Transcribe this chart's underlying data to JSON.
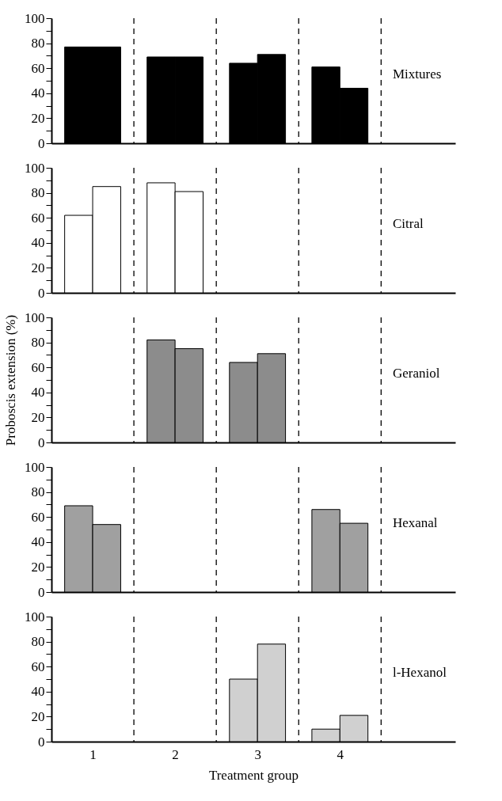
{
  "chart_data": [
    {
      "type": "bar",
      "title": "Mixtures",
      "x": [
        1,
        2,
        3,
        4
      ],
      "xlim": [
        0.5,
        5.4
      ],
      "ylim": [
        0,
        100
      ],
      "yticks": [
        0,
        {
          "value": 10,
          "label": null
        },
        20,
        {
          "value": 30,
          "label": null
        },
        40,
        {
          "value": 50,
          "label": null
        },
        60,
        {
          "value": 70,
          "label": null
        },
        80,
        {
          "value": 90,
          "label": null
        },
        100
      ],
      "tick_labels": "y",
      "grid": false,
      "series": [
        {
          "color": "#000000",
          "values": [
            77,
            69,
            64,
            61
          ]
        },
        {
          "color": "#000000",
          "values": [
            77,
            69,
            71,
            44
          ]
        }
      ],
      "ref_lines": [
        {
          "axis": "x",
          "value": 1.5,
          "color": "#000000",
          "line_style": "dashed"
        },
        {
          "axis": "x",
          "value": 2.5,
          "color": "#000000",
          "line_style": "dashed"
        },
        {
          "axis": "x",
          "value": 3.5,
          "color": "#000000",
          "line_style": "dashed"
        },
        {
          "axis": "x",
          "value": 4.5,
          "color": "#000000",
          "line_style": "dashed"
        }
      ]
    },
    {
      "type": "bar",
      "title": "Citral",
      "x": [
        1,
        2
      ],
      "xlim": [
        0.5,
        5.4
      ],
      "ylim": [
        0,
        100
      ],
      "yticks": [
        0,
        {
          "value": 10,
          "label": null
        },
        20,
        {
          "value": 30,
          "label": null
        },
        40,
        {
          "value": 50,
          "label": null
        },
        60,
        {
          "value": 70,
          "label": null
        },
        80,
        {
          "value": 90,
          "label": null
        },
        100
      ],
      "tick_labels": "y",
      "grid": false,
      "series": [
        {
          "color": "#ffffff",
          "values": [
            62,
            88
          ]
        },
        {
          "color": "#ffffff",
          "values": [
            85,
            81
          ]
        }
      ],
      "ref_lines": [
        {
          "axis": "x",
          "value": 1.5,
          "color": "#000000",
          "line_style": "dashed"
        },
        {
          "axis": "x",
          "value": 2.5,
          "color": "#000000",
          "line_style": "dashed"
        },
        {
          "axis": "x",
          "value": 3.5,
          "color": "#000000",
          "line_style": "dashed"
        },
        {
          "axis": "x",
          "value": 4.5,
          "color": "#000000",
          "line_style": "dashed"
        }
      ]
    },
    {
      "type": "bar",
      "title": "Geraniol",
      "ylabel": "Proboscis extension (%)",
      "x": [
        2,
        3
      ],
      "xlim": [
        0.5,
        5.4
      ],
      "ylim": [
        0,
        100
      ],
      "yticks": [
        0,
        {
          "value": 10,
          "label": null
        },
        20,
        {
          "value": 30,
          "label": null
        },
        40,
        {
          "value": 50,
          "label": null
        },
        60,
        {
          "value": 70,
          "label": null
        },
        80,
        {
          "value": 90,
          "label": null
        },
        100
      ],
      "tick_labels": "y",
      "grid": false,
      "series": [
        {
          "color": "#8c8c8c",
          "values": [
            82,
            64
          ]
        },
        {
          "color": "#8c8c8c",
          "values": [
            75,
            71
          ]
        }
      ],
      "ref_lines": [
        {
          "axis": "x",
          "value": 1.5,
          "color": "#000000",
          "line_style": "dashed"
        },
        {
          "axis": "x",
          "value": 2.5,
          "color": "#000000",
          "line_style": "dashed"
        },
        {
          "axis": "x",
          "value": 3.5,
          "color": "#000000",
          "line_style": "dashed"
        },
        {
          "axis": "x",
          "value": 4.5,
          "color": "#000000",
          "line_style": "dashed"
        }
      ]
    },
    {
      "type": "bar",
      "title": "Hexanal",
      "x": [
        1,
        4
      ],
      "xlim": [
        0.5,
        5.4
      ],
      "ylim": [
        0,
        100
      ],
      "yticks": [
        0,
        {
          "value": 10,
          "label": null
        },
        20,
        {
          "value": 30,
          "label": null
        },
        40,
        {
          "value": 50,
          "label": null
        },
        60,
        {
          "value": 70,
          "label": null
        },
        80,
        {
          "value": 90,
          "label": null
        },
        100
      ],
      "tick_labels": "y",
      "grid": false,
      "series": [
        {
          "color": "#a0a0a0",
          "values": [
            69,
            66
          ]
        },
        {
          "color": "#a0a0a0",
          "values": [
            54,
            55
          ]
        }
      ],
      "ref_lines": [
        {
          "axis": "x",
          "value": 1.5,
          "color": "#000000",
          "line_style": "dashed"
        },
        {
          "axis": "x",
          "value": 2.5,
          "color": "#000000",
          "line_style": "dashed"
        },
        {
          "axis": "x",
          "value": 3.5,
          "color": "#000000",
          "line_style": "dashed"
        },
        {
          "axis": "x",
          "value": 4.5,
          "color": "#000000",
          "line_style": "dashed"
        }
      ]
    },
    {
      "type": "bar",
      "title": "l-Hexanol",
      "xlabel": "Treatment group",
      "x": [
        3,
        4
      ],
      "xlim": [
        0.5,
        5.4
      ],
      "xticks": [
        1,
        2,
        3,
        4
      ],
      "ylim": [
        0,
        100
      ],
      "yticks": [
        0,
        {
          "value": 10,
          "label": null
        },
        20,
        {
          "value": 30,
          "label": null
        },
        40,
        {
          "value": 50,
          "label": null
        },
        60,
        {
          "value": 70,
          "label": null
        },
        80,
        {
          "value": 90,
          "label": null
        },
        100
      ],
      "grid": false,
      "series": [
        {
          "color": "#d0d0d0",
          "values": [
            50,
            10
          ]
        },
        {
          "color": "#d0d0d0",
          "values": [
            78,
            21
          ]
        }
      ],
      "ref_lines": [
        {
          "axis": "x",
          "value": 1.5,
          "color": "#000000",
          "line_style": "dashed"
        },
        {
          "axis": "x",
          "value": 2.5,
          "color": "#000000",
          "line_style": "dashed"
        },
        {
          "axis": "x",
          "value": 3.5,
          "color": "#000000",
          "line_style": "dashed"
        },
        {
          "axis": "x",
          "value": 4.5,
          "color": "#000000",
          "line_style": "dashed"
        }
      ]
    }
  ]
}
